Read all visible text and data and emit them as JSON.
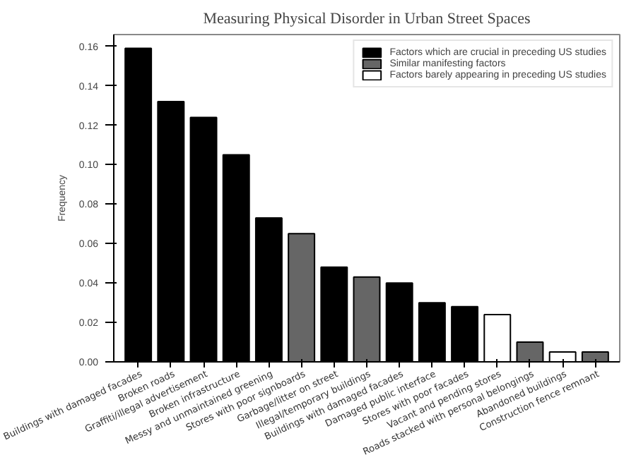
{
  "chart_data": {
    "type": "bar",
    "title": "Measuring Physical Disorder in Urban Street Spaces",
    "ylabel": "Frequency",
    "categories": [
      "Buildings with damaged facades",
      "Broken roads",
      "Graffiti/illegal advertisement",
      "Broken infrastructure",
      "Messy and unmaintained greening",
      "Stores with poor signboards",
      "Garbage/litter on street",
      "Illegal/temporary buildings",
      "Buildings with damaged facades",
      "Damaged public interface",
      "Stores with poor facades",
      "Vacant and pending stores",
      "Roads stacked with personal belongings",
      "Abandoned buildings",
      "Construction fence remnant"
    ],
    "series": [
      {
        "name": "Factors which are crucial in preceding US studies",
        "color": "#000000",
        "values": [
          0.159,
          0.132,
          0.124,
          0.105,
          0.073,
          null,
          0.048,
          null,
          0.04,
          0.03,
          0.028,
          null,
          null,
          null,
          null
        ]
      },
      {
        "name": "Similar manifesting factors",
        "color": "#666666",
        "values": [
          null,
          null,
          null,
          null,
          null,
          0.065,
          null,
          0.043,
          null,
          null,
          null,
          null,
          0.01,
          null,
          0.005
        ]
      },
      {
        "name": "Factors barely appearing in preceding US studies",
        "color": "#ffffff",
        "values": [
          null,
          null,
          null,
          null,
          null,
          null,
          null,
          null,
          null,
          null,
          null,
          0.024,
          null,
          0.005,
          null
        ]
      }
    ],
    "ylim": [
      0,
      0.166
    ],
    "yticks": [
      {
        "value": 0,
        "label": "0.00"
      },
      {
        "value": 0.02,
        "label": "0.02"
      },
      {
        "value": 0.04,
        "label": "0.04"
      },
      {
        "value": 0.06,
        "label": "0.06"
      },
      {
        "value": 0.08,
        "label": "0.08"
      },
      {
        "value": 0.1,
        "label": "0.10"
      },
      {
        "value": 0.12,
        "label": "0.12"
      },
      {
        "value": 0.14,
        "label": "0.14"
      },
      {
        "value": 0.16,
        "label": "0.16"
      }
    ],
    "grid": false,
    "legend": "top right"
  }
}
